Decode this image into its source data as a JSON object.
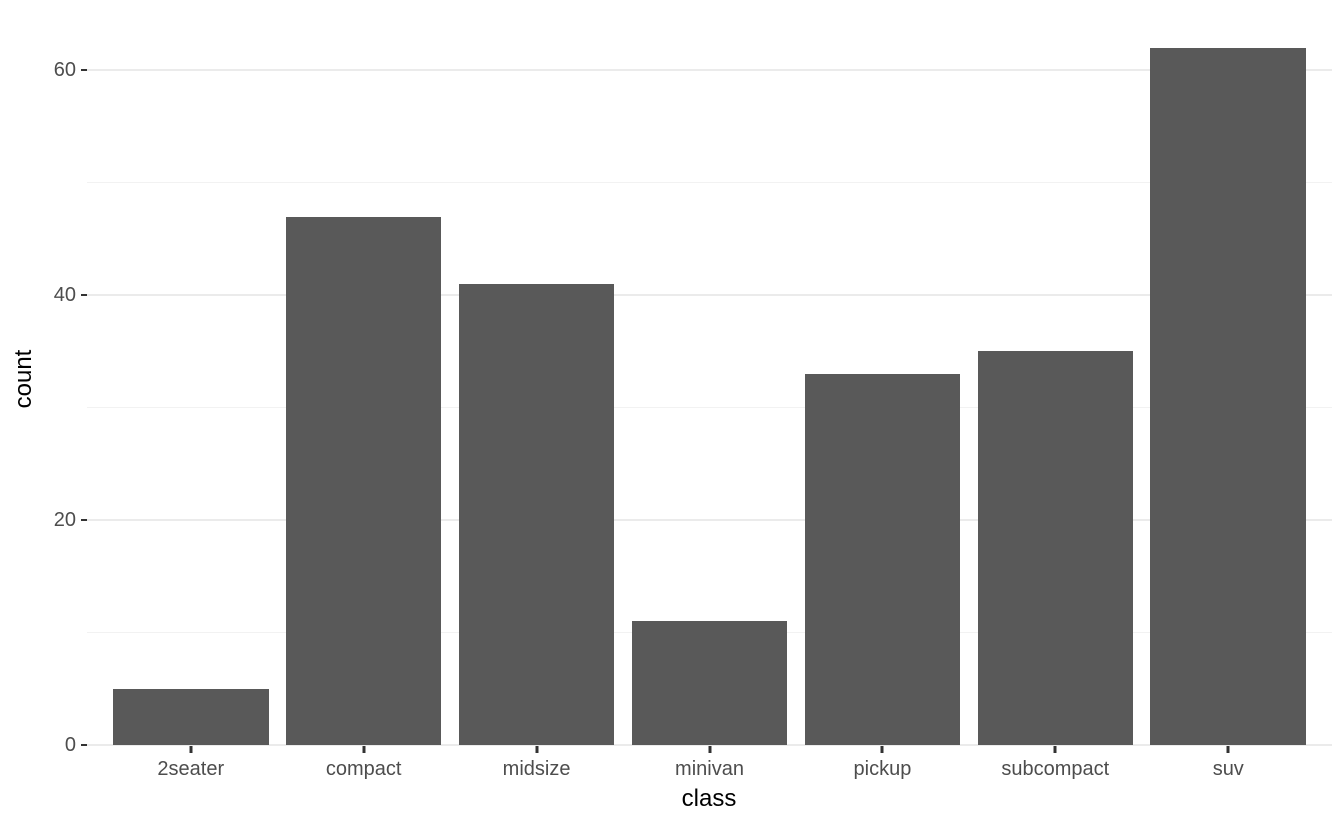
{
  "figure": {
    "background_color": "#FFFFFF"
  },
  "chart_data": {
    "type": "bar",
    "title": "",
    "xlabel": "class",
    "ylabel": "count",
    "categories": [
      "2seater",
      "compact",
      "midsize",
      "minivan",
      "pickup",
      "subcompact",
      "suv"
    ],
    "values": [
      5,
      47,
      41,
      11,
      33,
      35,
      62
    ],
    "ylim": [
      0,
      65.1
    ],
    "yticks_major": [
      0,
      20,
      40,
      60
    ],
    "yticks_minor": [
      10,
      30,
      50
    ],
    "grid": "horizontal major and minor, no vertical",
    "legend_position": "none",
    "colors": {
      "bar_fill": "#595959",
      "grid_major": "#EBEBEB",
      "grid_minor": "#F2F2F2",
      "tick_mark": "#333333",
      "tick_label": "#4D4D4D",
      "axis_title": "#000000",
      "panel_background": "#FFFFFF"
    }
  }
}
